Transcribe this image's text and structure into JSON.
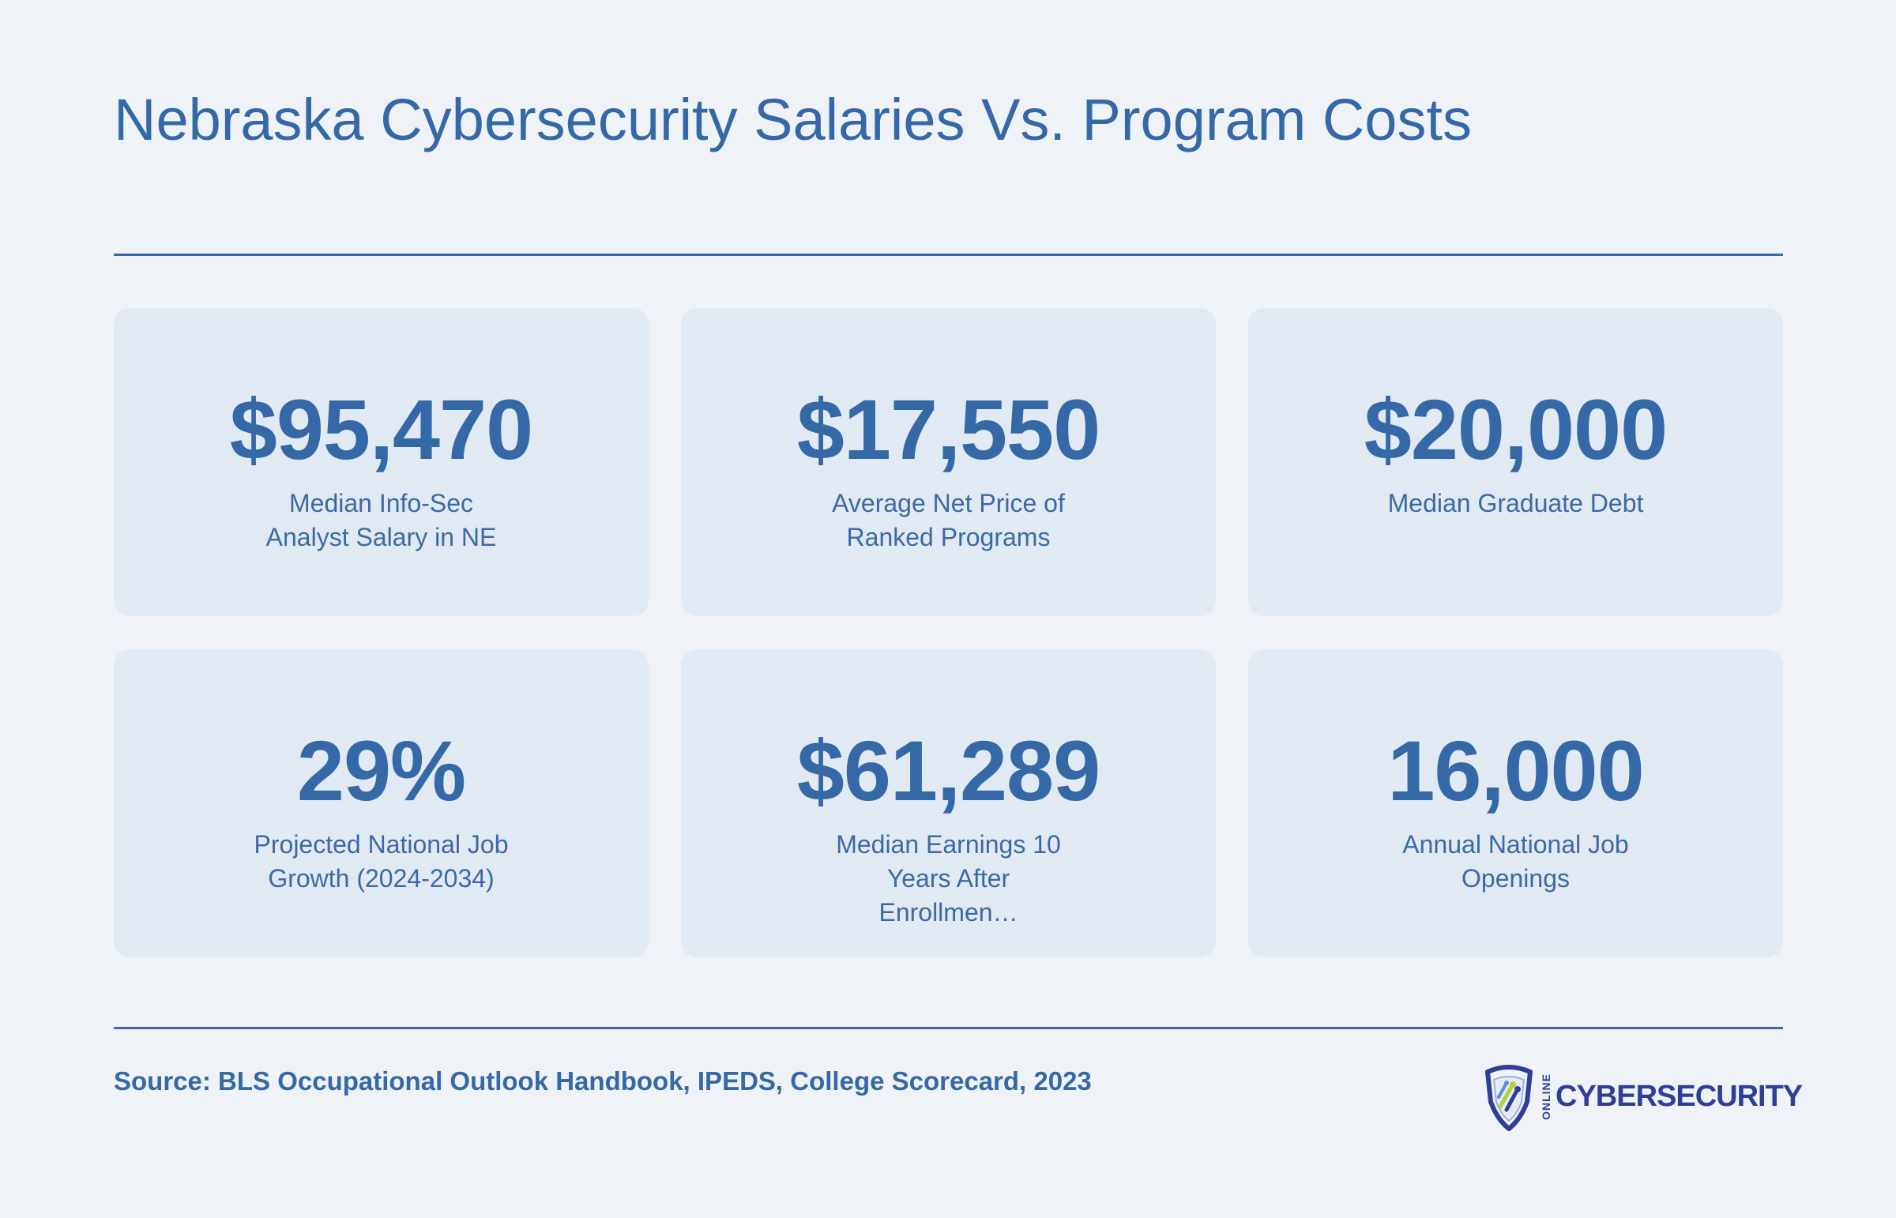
{
  "header": {
    "title": "Nebraska Cybersecurity Salaries Vs. Program Costs"
  },
  "stats": [
    {
      "value": "$95,470",
      "label": "Median Info-Sec Analyst Salary in NE"
    },
    {
      "value": "$17,550",
      "label": "Average Net Price of Ranked Programs"
    },
    {
      "value": "$20,000",
      "label": "Median Graduate Debt"
    },
    {
      "value": "29%",
      "label": "Projected National Job Growth (2024-2034)"
    },
    {
      "value": "$61,289",
      "label": "Median Earnings 10 Years After Enrollmen…"
    },
    {
      "value": "16,000",
      "label": "Annual National Job Openings"
    }
  ],
  "footer": {
    "source": "Source: BLS Occupational Outlook Handbook, IPEDS, College Scorecard, 2023",
    "logo_small": "ONLINE",
    "logo_word": "CYBERSECURITY"
  },
  "colors": {
    "accent": "#3468a6",
    "background": "#eff3f8",
    "card": "#e1e9f2",
    "logo_blue": "#2e3f95",
    "logo_green": "#b7cf3a"
  }
}
